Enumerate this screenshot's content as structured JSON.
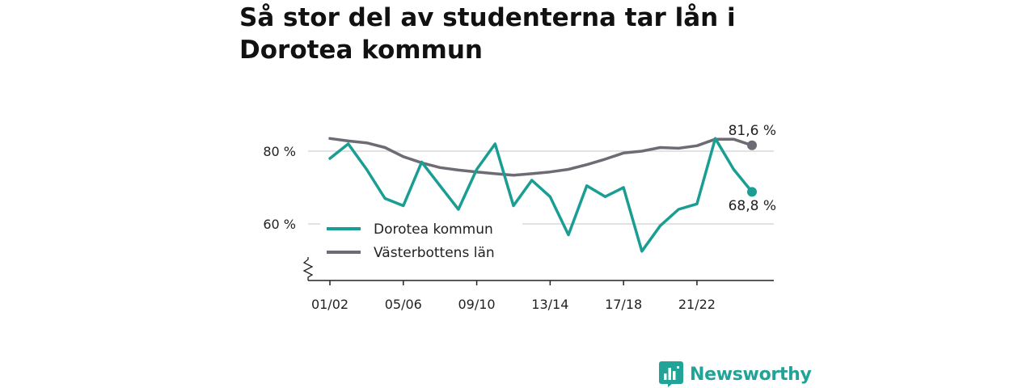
{
  "title": "Så stor del av studenterna tar lån i Dorotea kommun",
  "brand": {
    "name": "Newsworthy"
  },
  "colors": {
    "dorotea": "#1a9e94",
    "vasterbotten": "#6e6b74",
    "grid": "#d9d9d9",
    "axis": "#222222",
    "brand": "#22a397"
  },
  "chart_data": {
    "type": "line",
    "x": [
      "01/02",
      "02/03",
      "03/04",
      "04/05",
      "05/06",
      "06/07",
      "07/08",
      "08/09",
      "09/10",
      "10/11",
      "11/12",
      "12/13",
      "13/14",
      "14/15",
      "15/16",
      "16/17",
      "17/18",
      "18/19",
      "19/20",
      "20/21",
      "21/22",
      "22/23",
      "23/24",
      "24/25"
    ],
    "x_tick_labels": [
      "01/02",
      "05/06",
      "09/10",
      "13/14",
      "17/18",
      "21/22"
    ],
    "y_ticks": [
      60,
      80
    ],
    "y_tick_labels": [
      "60 %",
      "80 %"
    ],
    "ylim": [
      45,
      90
    ],
    "axis_break": true,
    "grid": true,
    "legend_position": "bottom-left",
    "series": [
      {
        "name": "Dorotea kommun",
        "color": "#1a9e94",
        "values": [
          78.0,
          82.0,
          75.0,
          67.0,
          65.0,
          77.0,
          70.5,
          64.0,
          75.0,
          82.0,
          65.0,
          72.0,
          67.5,
          57.0,
          70.5,
          67.5,
          70.0,
          52.5,
          59.5,
          64.0,
          65.5,
          83.5,
          75.0,
          68.8
        ],
        "end_label": "68,8 %"
      },
      {
        "name": "Västerbottens län",
        "color": "#6e6b74",
        "values": [
          83.5,
          82.8,
          82.3,
          81.0,
          78.5,
          76.8,
          75.5,
          74.8,
          74.3,
          73.8,
          73.4,
          73.8,
          74.3,
          75.0,
          76.3,
          77.8,
          79.5,
          80.0,
          81.0,
          80.8,
          81.5,
          83.3,
          83.3,
          81.6
        ],
        "end_label": "81,6 %"
      }
    ]
  }
}
